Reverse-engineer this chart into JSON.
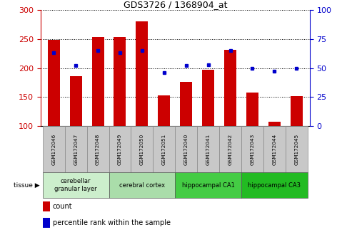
{
  "title": "GDS3726 / 1368904_at",
  "samples": [
    "GSM172046",
    "GSM172047",
    "GSM172048",
    "GSM172049",
    "GSM172050",
    "GSM172051",
    "GSM172040",
    "GSM172041",
    "GSM172042",
    "GSM172043",
    "GSM172044",
    "GSM172045"
  ],
  "count": [
    248,
    186,
    253,
    254,
    280,
    153,
    176,
    197,
    231,
    158,
    107,
    152
  ],
  "percentile": [
    63,
    52,
    65,
    63,
    65,
    46,
    52,
    53,
    65,
    50,
    47,
    50
  ],
  "ylim_left": [
    100,
    300
  ],
  "ylim_right": [
    0,
    100
  ],
  "yticks_left": [
    100,
    150,
    200,
    250,
    300
  ],
  "yticks_right": [
    0,
    25,
    50,
    75,
    100
  ],
  "bar_color": "#cc0000",
  "dot_color": "#0000cc",
  "bar_width": 0.55,
  "group_info": [
    {
      "label": "cerebellar\ngranular layer",
      "indices": [
        0,
        1,
        2
      ],
      "color": "#cceecc"
    },
    {
      "label": "cerebral cortex",
      "indices": [
        3,
        4,
        5
      ],
      "color": "#aaddaa"
    },
    {
      "label": "hippocampal CA1",
      "indices": [
        6,
        7,
        8
      ],
      "color": "#44cc44"
    },
    {
      "label": "hippocampal CA3",
      "indices": [
        9,
        10,
        11
      ],
      "color": "#22bb22"
    }
  ],
  "left_axis_color": "#cc0000",
  "right_axis_color": "#0000cc",
  "label_box_color": "#c8c8c8",
  "fig_width": 4.93,
  "fig_height": 3.54,
  "dpi": 100
}
